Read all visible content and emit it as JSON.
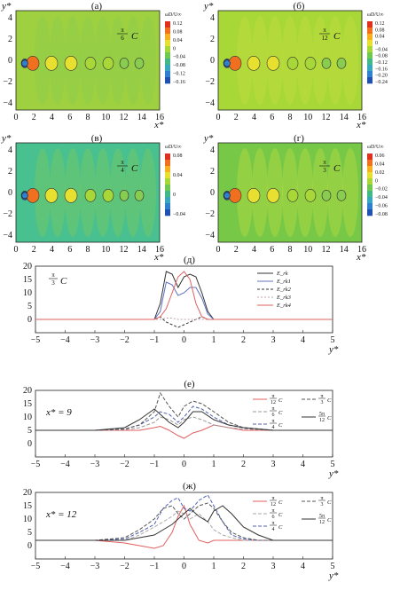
{
  "contour_panels": [
    {
      "label": "(а)",
      "angle_num": "π",
      "angle_den": "6",
      "angle_unit": "C",
      "cbar_title": "ωD/U∞",
      "cbar_ticks": [
        "0.12",
        "0.08",
        "0.04",
        "0",
        "−0.04",
        "−0.08",
        "−0.12",
        "−0.16"
      ],
      "cbar_colors": [
        "#e03020",
        "#f07020",
        "#f8b020",
        "#e8e030",
        "#a8d838",
        "#70c850",
        "#40b888",
        "#38a8c0",
        "#3080d0",
        "#2050b0"
      ],
      "bg": "#9fd040"
    },
    {
      "label": "(б)",
      "angle_num": "π",
      "angle_den": "12",
      "angle_unit": "C",
      "cbar_title": "ωD/U∞",
      "cbar_ticks": [
        "0.12",
        "0.08",
        "0.04",
        "0",
        "−0.04",
        "−0.08",
        "−0.12",
        "−0.16",
        "−0.20",
        "−0.24"
      ],
      "cbar_colors": [
        "#e03020",
        "#f07020",
        "#f8b020",
        "#e8e030",
        "#a8d838",
        "#70c850",
        "#40b888",
        "#38a8c0",
        "#3080d0",
        "#2050b0"
      ],
      "bg": "#a8d838"
    },
    {
      "label": "(в)",
      "angle_num": "π",
      "angle_den": "4",
      "angle_unit": "C",
      "cbar_title": "ωD/U∞",
      "cbar_ticks": [
        "0.08",
        "0.04",
        "0",
        "−0.04"
      ],
      "cbar_colors": [
        "#e03020",
        "#f07020",
        "#f8b020",
        "#e8e030",
        "#a8d838",
        "#70c850",
        "#40b888",
        "#38a8c0",
        "#3080d0",
        "#2050b0"
      ],
      "bg": "#48c090"
    },
    {
      "label": "(г)",
      "angle_num": "π",
      "angle_den": "3",
      "angle_unit": "C",
      "cbar_title": "ωD/U∞",
      "cbar_ticks": [
        "0.06",
        "0.04",
        "0.02",
        "0",
        "−0.02",
        "−0.04",
        "−0.06",
        "−0.08"
      ],
      "cbar_colors": [
        "#e03020",
        "#f07020",
        "#f8b020",
        "#e8e030",
        "#a8d838",
        "#70c850",
        "#40b888",
        "#38a8c0",
        "#3080d0",
        "#2050b0"
      ],
      "bg": "#78c848"
    }
  ],
  "contour_axes": {
    "xlabel": "x*",
    "ylabel": "y*",
    "xticks": [
      "0",
      "2",
      "4",
      "6",
      "8",
      "10",
      "12",
      "14",
      "16"
    ],
    "yticks": [
      "4",
      "2",
      "0",
      "−2",
      "−4"
    ]
  },
  "line_panels": [
    {
      "label": "(д)",
      "note_num": "π",
      "note_den": "3",
      "note_unit": "C",
      "legend": [
        "E_rk",
        "E_rk1",
        "E_rk2",
        "E_rk3",
        "E_rk4"
      ]
    },
    {
      "label": "(е)",
      "note": "x* = 9",
      "legend_fracs": [
        [
          "π",
          "12"
        ],
        [
          "5π",
          "12"
        ],
        [
          "π",
          "6"
        ],
        [
          "π",
          "3"
        ],
        [
          "π",
          "4"
        ]
      ]
    },
    {
      "label": "(ж)",
      "note": "x* = 12",
      "legend_fracs": [
        [
          "π",
          "12"
        ],
        [
          "5π",
          "12"
        ],
        [
          "π",
          "6"
        ],
        [
          "π",
          "3"
        ],
        [
          "π",
          "4"
        ]
      ]
    }
  ],
  "line_axes": {
    "xlabel": "y*",
    "xticks": [
      "−5",
      "−4",
      "−3",
      "−2",
      "−1",
      "0",
      "1",
      "2",
      "3",
      "4",
      "5"
    ],
    "yticks": [
      "20",
      "15",
      "10",
      "5",
      "0"
    ]
  },
  "chart_data": [
    {
      "type": "line",
      "panel": "(д)",
      "x": [
        -5,
        -1.0,
        -0.8,
        -0.6,
        -0.4,
        -0.2,
        0,
        0.2,
        0.4,
        0.6,
        0.8,
        1.0,
        5
      ],
      "series": [
        {
          "name": "E_rk",
          "color": "#333333",
          "dash": "",
          "values": [
            0,
            0,
            6,
            18,
            17,
            12,
            16,
            17,
            16,
            10,
            3,
            0,
            0
          ]
        },
        {
          "name": "E_rk1",
          "color": "#6070c0",
          "dash": "",
          "values": [
            0,
            0,
            3,
            14,
            13,
            9,
            10,
            12,
            12,
            8,
            2,
            0,
            0
          ]
        },
        {
          "name": "E_rk2",
          "color": "#333333",
          "dash": "3,2",
          "values": [
            0,
            0,
            1,
            -1,
            -2,
            -3,
            -2,
            -1,
            0,
            1,
            0,
            0,
            0
          ]
        },
        {
          "name": "E_rk3",
          "color": "#c0a0b0",
          "dash": "2,2",
          "values": [
            0,
            0,
            0,
            0.5,
            0.5,
            0,
            0,
            0,
            0,
            0,
            0,
            0,
            0
          ]
        },
        {
          "name": "E_rk4",
          "color": "#e06060",
          "dash": "",
          "values": [
            0,
            0,
            1,
            4,
            10,
            16,
            18,
            15,
            6,
            1,
            0,
            0,
            0
          ]
        }
      ]
    },
    {
      "type": "line",
      "panel": "(е)",
      "x": [
        -5,
        -3,
        -2,
        -1.5,
        -1.0,
        -0.8,
        -0.5,
        -0.2,
        0,
        0.3,
        0.6,
        1.0,
        1.5,
        2,
        3,
        4,
        5
      ],
      "series": [
        {
          "name": "π/12 C",
          "color": "#e06060",
          "dash": "",
          "values": [
            5,
            5,
            5,
            5,
            6,
            6.5,
            5,
            3,
            2,
            4,
            5,
            7,
            6,
            5,
            5,
            5,
            5
          ]
        },
        {
          "name": "π/6 C",
          "color": "#999999",
          "dash": "4,2",
          "values": [
            5,
            5,
            5.2,
            6,
            8,
            10,
            9,
            7,
            9,
            10,
            9,
            7,
            6,
            5.5,
            5,
            5,
            5
          ]
        },
        {
          "name": "π/4 C",
          "color": "#5060b0",
          "dash": "4,2",
          "values": [
            5,
            5,
            5.5,
            7,
            10,
            12,
            11,
            8,
            10,
            14,
            13,
            10,
            7,
            6,
            5,
            5,
            5
          ]
        },
        {
          "name": "π/3 C",
          "color": "#555555",
          "dash": "4,2",
          "values": [
            5,
            5,
            5.5,
            7,
            12,
            19,
            14,
            10,
            14,
            16,
            15,
            12,
            8,
            6,
            5,
            5,
            5
          ]
        },
        {
          "name": "5π/12 C",
          "color": "#333333",
          "dash": "",
          "values": [
            5,
            5,
            6,
            9,
            13,
            11,
            8,
            6,
            8,
            12,
            12,
            9,
            7,
            6,
            5,
            5,
            5
          ]
        }
      ]
    },
    {
      "type": "line",
      "panel": "(ж)",
      "x": [
        -5,
        -3,
        -2,
        -1.5,
        -1.0,
        -0.7,
        -0.4,
        -0.2,
        0,
        0.2,
        0.5,
        0.8,
        1.0,
        1.3,
        1.6,
        2,
        2.5,
        3,
        5
      ],
      "series": [
        {
          "name": "π/12 C",
          "color": "#e06060",
          "dash": "",
          "values": [
            2,
            2,
            1,
            0,
            -1,
            0,
            5,
            11,
            15,
            8,
            2,
            1,
            2,
            2,
            2,
            2,
            2,
            2,
            2
          ]
        },
        {
          "name": "π/6 C",
          "color": "#aaaaaa",
          "dash": "4,2",
          "values": [
            2,
            2,
            2,
            4,
            7,
            9,
            11,
            13,
            12,
            10,
            12,
            9,
            6,
            4,
            3,
            2,
            2,
            2,
            2
          ]
        },
        {
          "name": "π/4 C",
          "color": "#5060b0",
          "dash": "4,2",
          "values": [
            2,
            2,
            2.5,
            5,
            8,
            14,
            17,
            18,
            14,
            13,
            17,
            19,
            15,
            9,
            4,
            2.5,
            2,
            2,
            2
          ]
        },
        {
          "name": "π/3 C",
          "color": "#555555",
          "dash": "4,2",
          "values": [
            2,
            2,
            3,
            6,
            10,
            14,
            15,
            12,
            10,
            12,
            15,
            16,
            14,
            9,
            5,
            3,
            2,
            2,
            2
          ]
        },
        {
          "name": "5π/12 C",
          "color": "#333333",
          "dash": "",
          "values": [
            2,
            2,
            2,
            3,
            4,
            6,
            8,
            10,
            12,
            14,
            11,
            9,
            13,
            15,
            12,
            7,
            4,
            2,
            2
          ]
        }
      ]
    }
  ]
}
